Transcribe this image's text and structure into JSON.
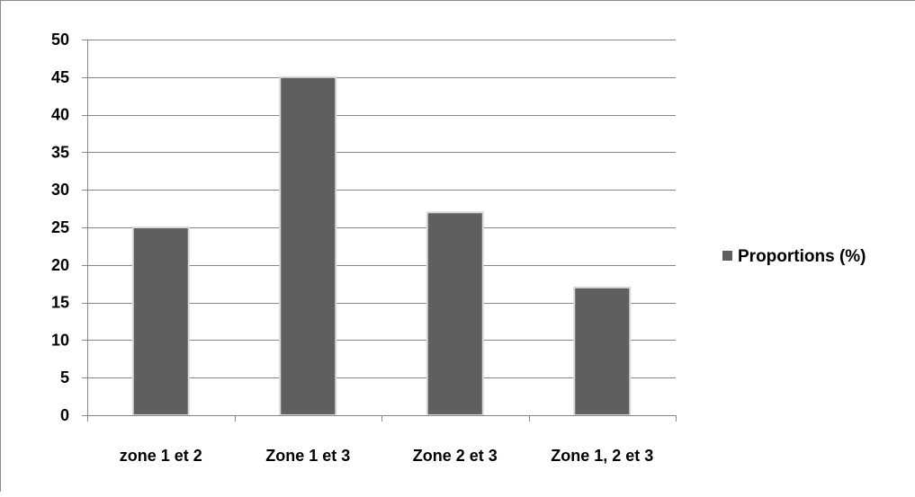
{
  "chart_data": {
    "type": "bar",
    "title": "",
    "xlabel": "",
    "ylabel": "",
    "categories": [
      "zone 1 et 2",
      "Zone 1 et 3",
      "Zone 2 et 3",
      "Zone 1, 2 et 3"
    ],
    "series": [
      {
        "name": "Proportions (%)",
        "values": [
          25,
          45,
          27,
          17
        ],
        "color": "#5f5f5f"
      }
    ],
    "ylim": [
      0,
      50
    ],
    "yticks": [
      0,
      5,
      10,
      15,
      20,
      25,
      30,
      35,
      40,
      45,
      50
    ],
    "grid": true,
    "legend": "right",
    "colors": {
      "bar": "#5f5f5f",
      "bar_edge": "#d9d9d9",
      "grid": "#868686",
      "axis": "#868686"
    }
  }
}
